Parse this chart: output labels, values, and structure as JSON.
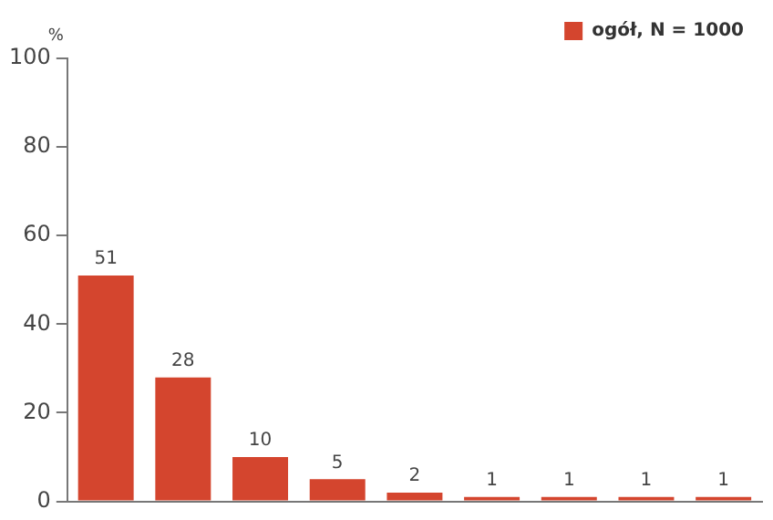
{
  "chart_data": {
    "type": "bar",
    "ylabel": "%",
    "categories": [
      null,
      null,
      null,
      null,
      null,
      null,
      null,
      null,
      null
    ],
    "series": [
      {
        "name": "ogół, N = 1000",
        "color": "#d4452e",
        "values": [
          51,
          28,
          10,
          5,
          2,
          1,
          1,
          1,
          1
        ]
      }
    ],
    "ylim": [
      0,
      100
    ],
    "yticks": [
      0,
      20,
      40,
      60,
      80,
      100
    ],
    "grid": false,
    "legend": "top right",
    "data_labels": true,
    "tick_labels": "y"
  }
}
